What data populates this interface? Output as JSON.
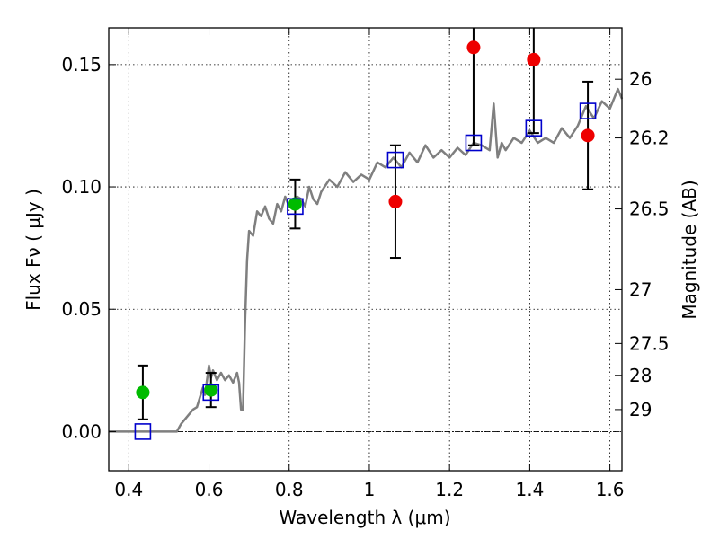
{
  "chart_data": {
    "type": "scatter",
    "title": "",
    "xlabel": "Wavelength  λ (μm)",
    "ylabel_left": "Flux  Fν  ( μJy )",
    "ylabel_right": "Magnitude (AB)",
    "xlim": [
      0.35,
      1.63
    ],
    "ylim": [
      -0.016,
      0.165
    ],
    "grid": true,
    "x_ticks": [
      0.4,
      0.6,
      0.8,
      1.0,
      1.2,
      1.4,
      1.6
    ],
    "x_tick_labels": [
      "0.4",
      "0.6",
      "0.8",
      "1",
      "1.2",
      "1.4",
      "1.6"
    ],
    "y_ticks": [
      0.0,
      0.05,
      0.1,
      0.15
    ],
    "y_tick_labels": [
      "0.00",
      "0.05",
      "0.10",
      "0.15"
    ],
    "right_ticks": [
      {
        "label": "26",
        "flux": 0.144
      },
      {
        "label": "26.2",
        "flux": 0.12
      },
      {
        "label": "26.5",
        "flux": 0.091
      },
      {
        "label": "27",
        "flux": 0.058
      },
      {
        "label": "27.5",
        "flux": 0.036
      },
      {
        "label": "28",
        "flux": 0.023
      },
      {
        "label": "29",
        "flux": 0.009
      }
    ],
    "model_spectrum": {
      "color": "#7f7f7f",
      "x": [
        0.35,
        0.52,
        0.53,
        0.56,
        0.57,
        0.585,
        0.59,
        0.6,
        0.605,
        0.61,
        0.62,
        0.63,
        0.64,
        0.65,
        0.66,
        0.67,
        0.675,
        0.68,
        0.685,
        0.69,
        0.695,
        0.7,
        0.71,
        0.72,
        0.73,
        0.74,
        0.75,
        0.76,
        0.77,
        0.78,
        0.79,
        0.8,
        0.81,
        0.82,
        0.83,
        0.84,
        0.85,
        0.86,
        0.87,
        0.88,
        0.9,
        0.92,
        0.94,
        0.96,
        0.98,
        1.0,
        1.02,
        1.04,
        1.06,
        1.08,
        1.1,
        1.12,
        1.14,
        1.16,
        1.18,
        1.2,
        1.22,
        1.24,
        1.26,
        1.28,
        1.3,
        1.31,
        1.32,
        1.33,
        1.34,
        1.36,
        1.38,
        1.4,
        1.42,
        1.44,
        1.46,
        1.48,
        1.5,
        1.52,
        1.54,
        1.56,
        1.58,
        1.6,
        1.62,
        1.63
      ],
      "y": [
        0.0,
        0.0,
        0.003,
        0.009,
        0.01,
        0.018,
        0.015,
        0.027,
        0.022,
        0.025,
        0.021,
        0.024,
        0.021,
        0.023,
        0.02,
        0.024,
        0.02,
        0.009,
        0.009,
        0.045,
        0.07,
        0.082,
        0.08,
        0.09,
        0.088,
        0.092,
        0.087,
        0.085,
        0.093,
        0.09,
        0.096,
        0.092,
        0.093,
        0.096,
        0.095,
        0.092,
        0.1,
        0.095,
        0.093,
        0.098,
        0.103,
        0.1,
        0.106,
        0.102,
        0.105,
        0.103,
        0.11,
        0.108,
        0.112,
        0.108,
        0.114,
        0.11,
        0.117,
        0.112,
        0.115,
        0.112,
        0.116,
        0.113,
        0.118,
        0.117,
        0.115,
        0.134,
        0.112,
        0.118,
        0.115,
        0.12,
        0.118,
        0.123,
        0.118,
        0.12,
        0.118,
        0.124,
        0.12,
        0.125,
        0.133,
        0.128,
        0.135,
        0.132,
        0.14,
        0.136
      ]
    },
    "series": [
      {
        "name": "green points",
        "color": "#00bb00",
        "marker": "circle",
        "points": [
          {
            "x": 0.435,
            "y": 0.016,
            "err": 0.011
          },
          {
            "x": 0.605,
            "y": 0.017,
            "err": 0.007
          },
          {
            "x": 0.815,
            "y": 0.093,
            "err": 0.01
          }
        ]
      },
      {
        "name": "red points",
        "color": "#ee0000",
        "marker": "circle",
        "points": [
          {
            "x": 1.065,
            "y": 0.094,
            "err": 0.023
          },
          {
            "x": 1.26,
            "y": 0.157,
            "err": 0.04
          },
          {
            "x": 1.41,
            "y": 0.152,
            "err": 0.03
          },
          {
            "x": 1.545,
            "y": 0.121,
            "err": 0.022
          }
        ]
      },
      {
        "name": "model band fluxes",
        "color": "#0000cc",
        "marker": "square",
        "points": [
          {
            "x": 0.435,
            "y": 0.0
          },
          {
            "x": 0.605,
            "y": 0.016
          },
          {
            "x": 0.815,
            "y": 0.092
          },
          {
            "x": 1.065,
            "y": 0.111
          },
          {
            "x": 1.26,
            "y": 0.118
          },
          {
            "x": 1.41,
            "y": 0.124
          },
          {
            "x": 1.545,
            "y": 0.131
          }
        ]
      }
    ]
  }
}
